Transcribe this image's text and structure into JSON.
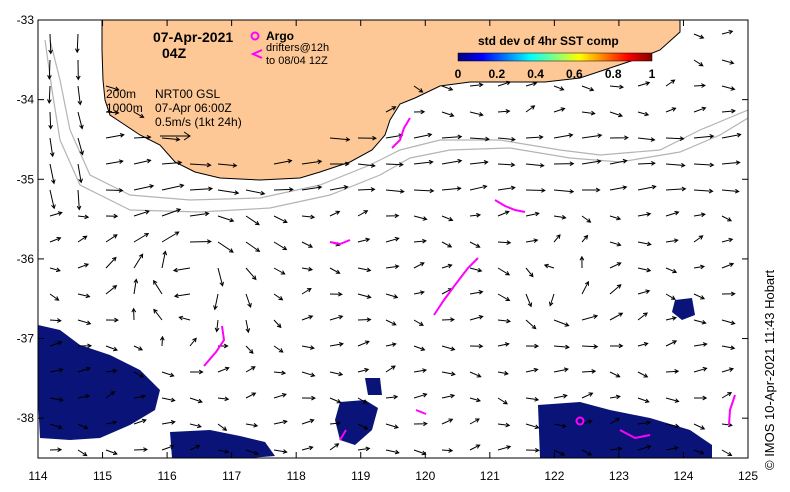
{
  "map": {
    "date_label": "07-Apr-2021",
    "time_label": "04Z",
    "legend": {
      "argo_label": "Argo",
      "drifters_line1": "drifters@12h",
      "drifters_line2": "to 08/04 12Z",
      "argo_color": "#ff00ff",
      "drifter_color": "#ff00ff"
    },
    "contour_labels": {
      "c200": "200m",
      "c1000": "1000m"
    },
    "product_info": {
      "line1": "NRT00 GSL",
      "line2": "07-Apr 06:00Z",
      "scale_label": "0.5m/s (1kt 24h)"
    },
    "colorbar": {
      "title": "std dev of 4hr SST comp",
      "ticks": [
        "0",
        "0.2",
        "0.4",
        "0.6",
        "0.8",
        "1"
      ],
      "colors": [
        "#00007f",
        "#0000ff",
        "#0080ff",
        "#00ffff",
        "#80ff80",
        "#ffff00",
        "#ff8000",
        "#ff0000",
        "#7f0000"
      ]
    },
    "axes": {
      "lon_ticks": [
        "114",
        "115",
        "116",
        "117",
        "118",
        "119",
        "120",
        "121",
        "122",
        "123",
        "124",
        "125"
      ],
      "lat_ticks": [
        "-33",
        "-34",
        "-35",
        "-36",
        "-37",
        "-38"
      ],
      "lon_range": [
        114,
        125
      ],
      "lat_range": [
        -38.5,
        -33
      ]
    },
    "colors": {
      "land": "#fdc896",
      "sea": "#ffffff",
      "contour": "#b4b4b4",
      "anomaly": "#0a1478"
    },
    "credit": "© IMOS 10-Apr-2021 11:43 Hobart"
  }
}
